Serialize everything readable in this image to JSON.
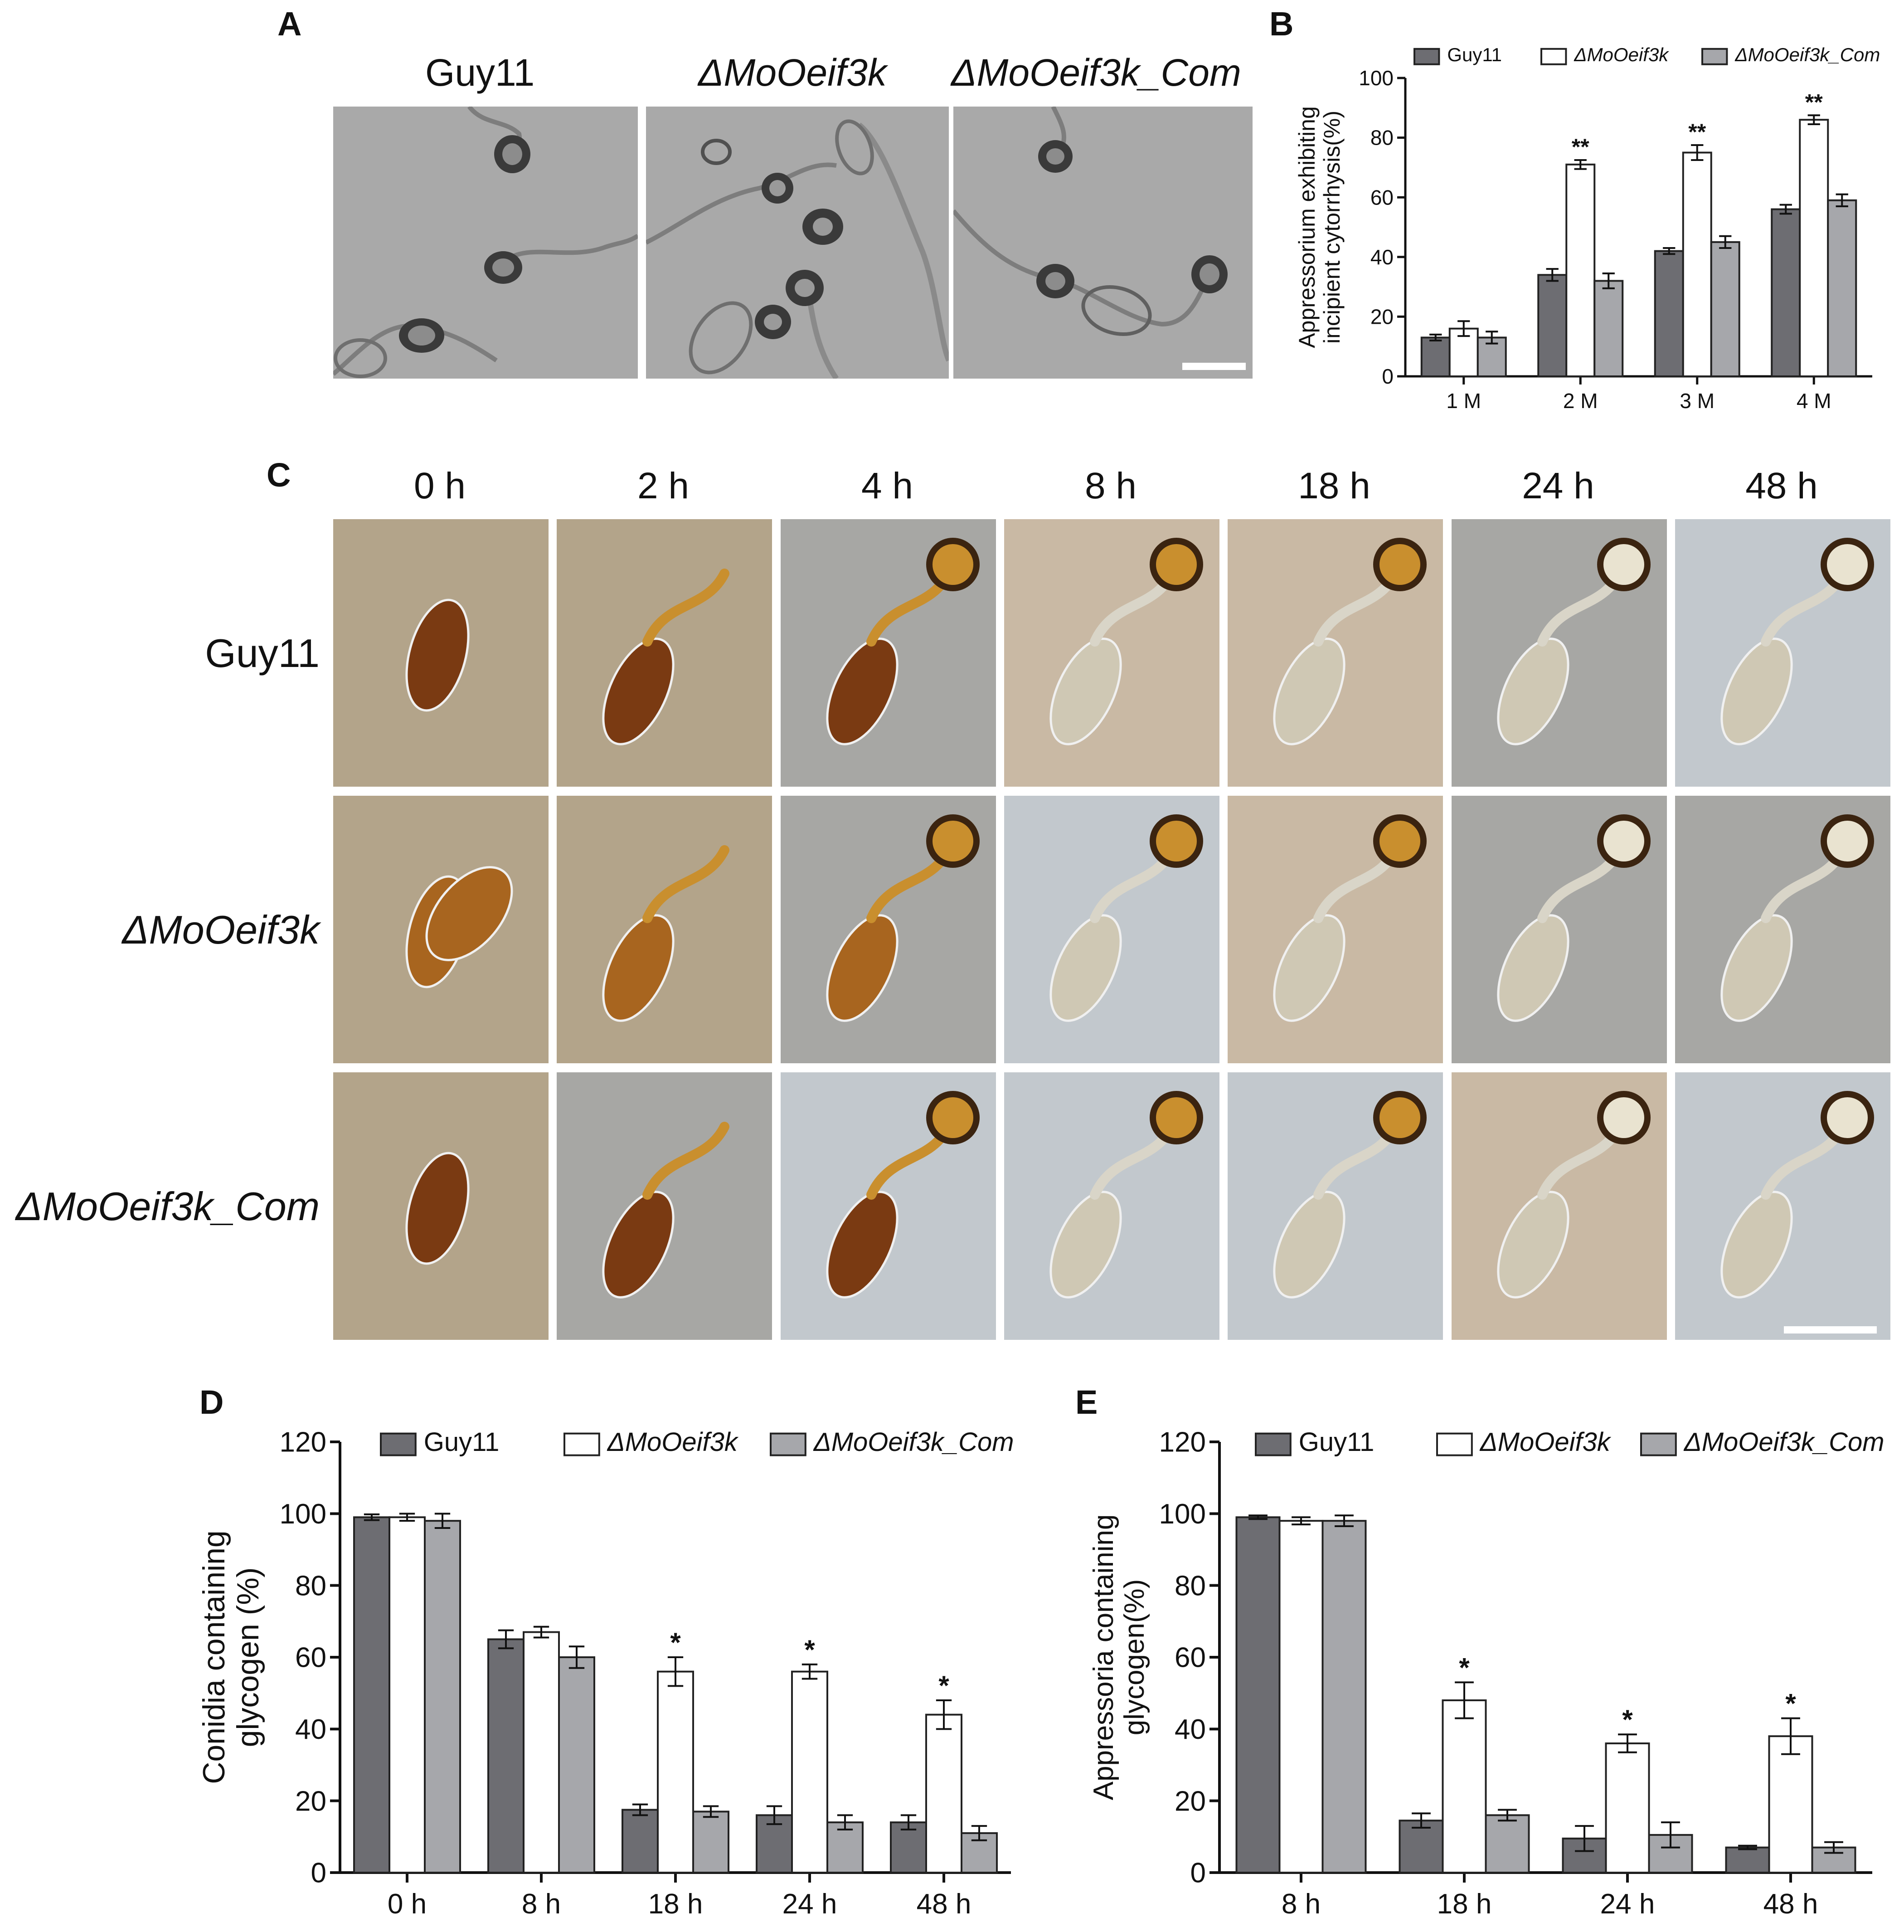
{
  "panel_letters": {
    "a": "A",
    "b": "B",
    "c": "C",
    "d": "D",
    "e": "E"
  },
  "panel_a": {
    "strains": [
      "Guy11",
      "ΔMoOeif3k",
      "ΔMoOeif3k_Com"
    ]
  },
  "panel_c": {
    "times": [
      "0 h",
      "2 h",
      "4 h",
      "8 h",
      "18 h",
      "24 h",
      "48 h"
    ],
    "rows": [
      "Guy11",
      "ΔMoOeif3k",
      "ΔMoOeif3k_Com"
    ],
    "colors": {
      "brown_dark": "#7a3a12",
      "brown_mid": "#a8651f",
      "golden": "#c98f2e",
      "pale": "#cfc8b4",
      "bg_khaki": "#b3a48a",
      "bg_gray": "#a7a7a4",
      "bg_blue": "#c2c8cd",
      "bg_tan": "#c9b9a4"
    }
  },
  "legend_colors": {
    "guy11": "#6d6d72",
    "deletion": "#ffffff",
    "complement": "#a6a7ab",
    "outline": "#222222"
  },
  "chart_data": [
    {
      "id": "B",
      "type": "bar",
      "categories": [
        "1 M",
        "2 M",
        "3 M",
        "4 M"
      ],
      "ylabel": "Appressorium exhibiting incipient cytorrhysis(%)",
      "ylabel_lines": [
        "Appressorium exhibiting",
        "incipient cytorrhysis(%)"
      ],
      "ylim": [
        0,
        100
      ],
      "yticks": [
        "0",
        "20",
        "40",
        "60",
        "80",
        "100"
      ],
      "series": [
        {
          "name": "Guy11",
          "values": [
            13,
            34,
            42,
            56
          ],
          "errors": [
            1,
            2,
            1,
            1.5
          ]
        },
        {
          "name": "ΔMoOeif3k",
          "values": [
            16,
            71,
            75,
            86
          ],
          "errors": [
            2.5,
            1.5,
            2.5,
            1.5
          ]
        },
        {
          "name": "ΔMoOeif3k_Com",
          "values": [
            13,
            32,
            45,
            59
          ],
          "errors": [
            2,
            2.5,
            2,
            2
          ]
        }
      ],
      "significance": [
        "",
        "**",
        "**",
        "**"
      ]
    },
    {
      "id": "D",
      "type": "bar",
      "categories": [
        "0 h",
        "8 h",
        "18 h",
        "24 h",
        "48 h"
      ],
      "ylabel": "Conidia containing glycogen (%)",
      "ylabel_lines": [
        "Conidia containing",
        "glycogen (%)"
      ],
      "ylim": [
        0,
        120
      ],
      "yticks": [
        "0",
        "20",
        "40",
        "60",
        "80",
        "100",
        "120"
      ],
      "series": [
        {
          "name": "Guy11",
          "values": [
            99,
            65,
            17.5,
            16,
            14
          ],
          "errors": [
            0.8,
            2.5,
            1.5,
            2.5,
            2
          ]
        },
        {
          "name": "ΔMoOeif3k",
          "values": [
            99,
            67,
            56,
            56,
            44
          ],
          "errors": [
            1,
            1.5,
            4,
            2,
            4
          ]
        },
        {
          "name": "ΔMoOeif3k_Com",
          "values": [
            98,
            60,
            17,
            14,
            11
          ],
          "errors": [
            2,
            3,
            1.5,
            2,
            2
          ]
        }
      ],
      "significance": [
        "",
        "",
        "*",
        "*",
        "*"
      ]
    },
    {
      "id": "E",
      "type": "bar",
      "categories": [
        "8 h",
        "18 h",
        "24 h",
        "48 h"
      ],
      "ylabel": "Appressoria containing glycogen(%)",
      "ylabel_lines": [
        "Appressoria containing",
        "glycogen(%)"
      ],
      "ylim": [
        0,
        120
      ],
      "yticks": [
        "0",
        "20",
        "40",
        "60",
        "80",
        "100",
        "120"
      ],
      "series": [
        {
          "name": "Guy11",
          "values": [
            99,
            14.5,
            9.5,
            7
          ],
          "errors": [
            0.5,
            2,
            3.5,
            0.5
          ]
        },
        {
          "name": "ΔMoOeif3k",
          "values": [
            98,
            48,
            36,
            38
          ],
          "errors": [
            1,
            5,
            2.5,
            5
          ]
        },
        {
          "name": "ΔMoOeif3k_Com",
          "values": [
            98,
            16,
            10.5,
            7
          ],
          "errors": [
            1.5,
            1.5,
            3.5,
            1.5
          ]
        }
      ],
      "significance": [
        "",
        "*",
        "*",
        "*"
      ]
    }
  ]
}
